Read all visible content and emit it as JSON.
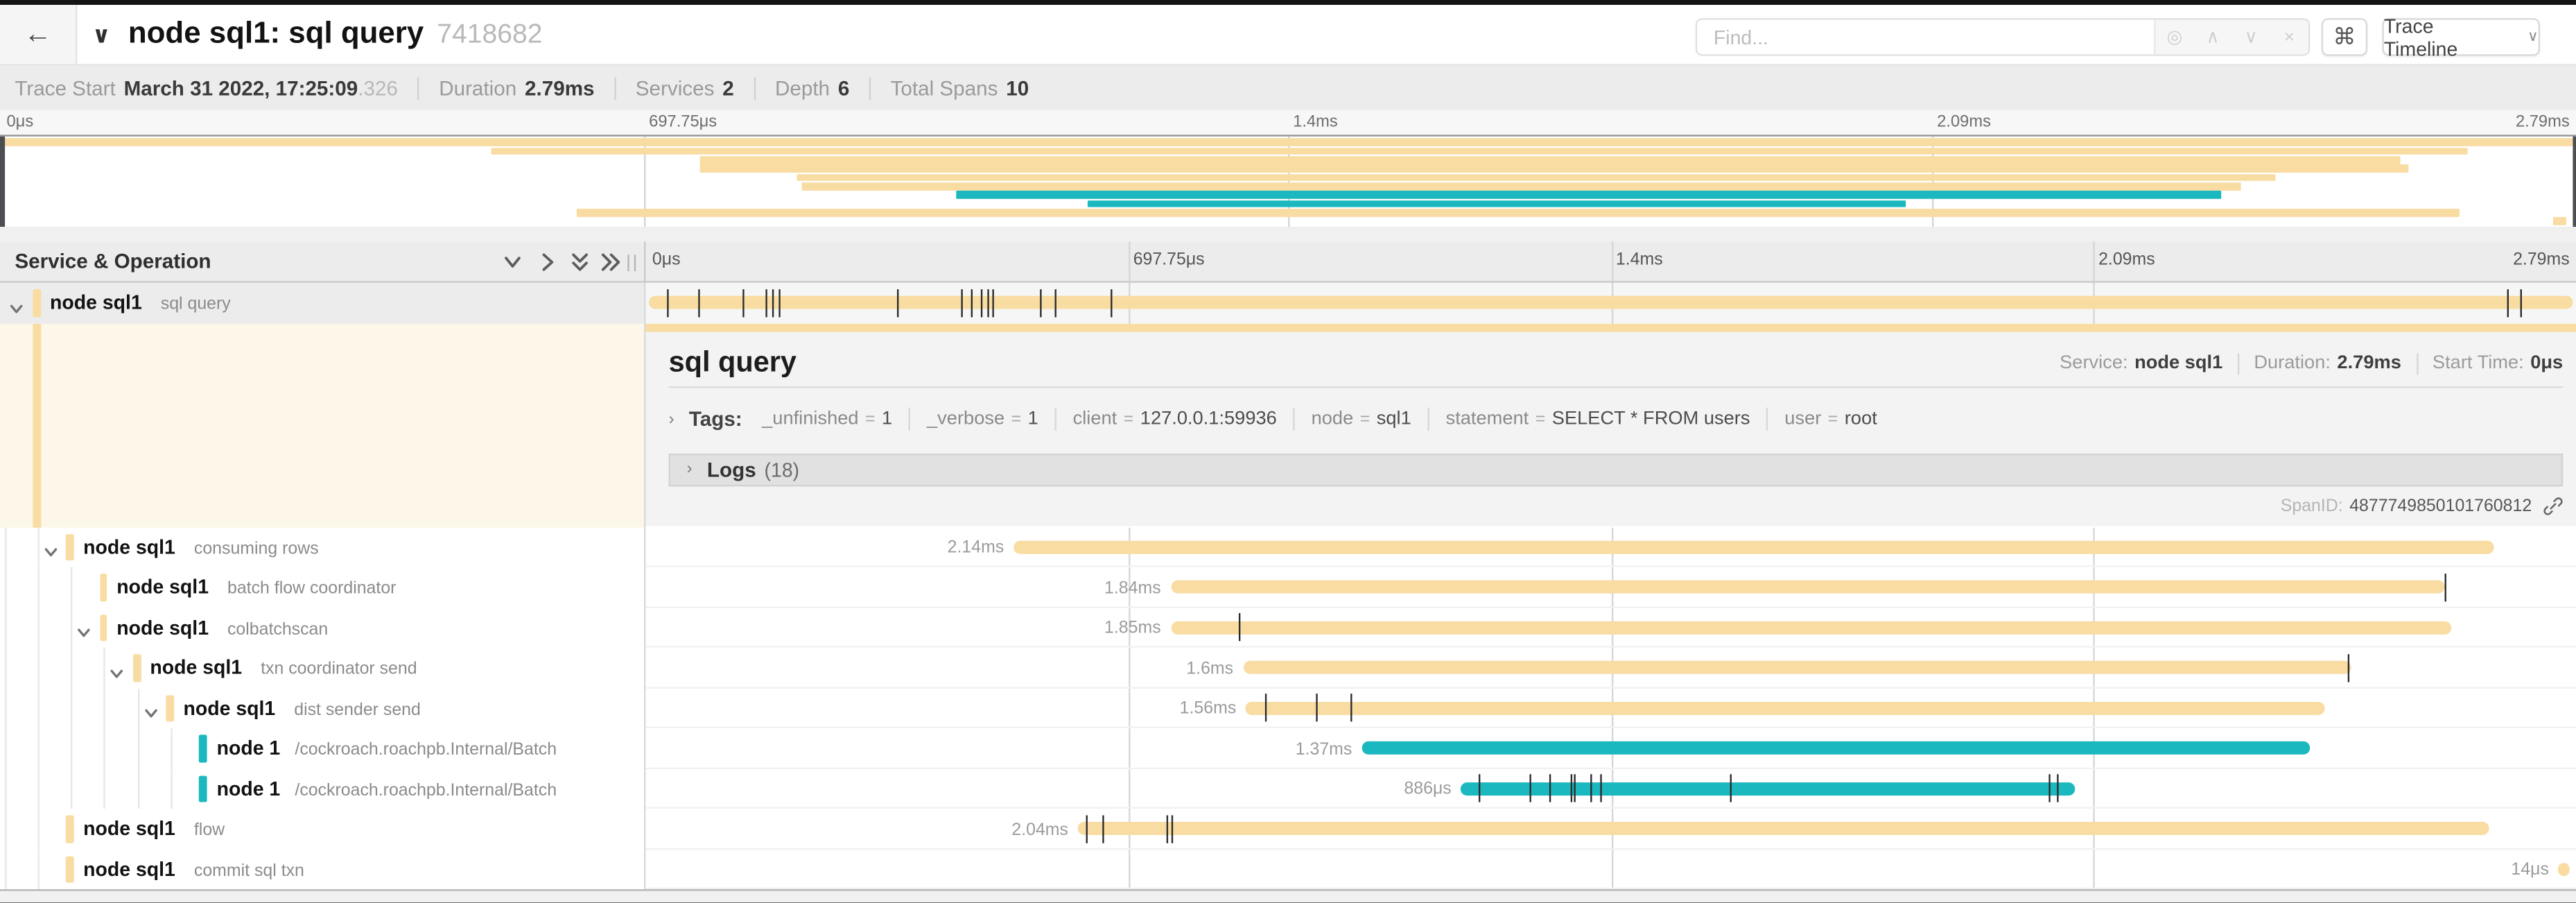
{
  "header": {
    "back_icon": "←",
    "collapse_chevron": "∨",
    "title": "node sql1: sql query",
    "trace_id": "7418682",
    "find_placeholder": "Find...",
    "find_icons": [
      "locate",
      "prev",
      "next",
      "clear"
    ],
    "find_icon_glyphs": {
      "locate": "◎",
      "prev": "∧",
      "next": "∨",
      "clear": "×"
    },
    "shortcut_key": "⌘",
    "view_button": "Trace Timeline",
    "view_button_caret": "∨"
  },
  "trace_info": {
    "items": [
      {
        "label": "Trace Start",
        "value": "March 31 2022, 17:25:09",
        "suffix": ".326"
      },
      {
        "label": "Duration",
        "value": "2.79ms",
        "suffix": ""
      },
      {
        "label": "Services",
        "value": "2",
        "suffix": ""
      },
      {
        "label": "Depth",
        "value": "6",
        "suffix": ""
      },
      {
        "label": "Total Spans",
        "value": "10",
        "suffix": ""
      }
    ]
  },
  "timeline": {
    "left_header": "Service & Operation",
    "ticks": [
      "0μs",
      "697.75μs",
      "1.4ms",
      "2.09ms",
      "2.79ms"
    ],
    "tick_positions_pct": [
      0,
      25,
      50,
      75,
      100
    ]
  },
  "detail": {
    "title": "sql query",
    "service_label": "Service:",
    "service": "node sql1",
    "duration_label": "Duration:",
    "duration": "2.79ms",
    "start_label": "Start Time:",
    "start": "0μs",
    "tags_label": "Tags:",
    "tags": [
      {
        "key": "_unfinished",
        "value": "1"
      },
      {
        "key": "_verbose",
        "value": "1"
      },
      {
        "key": "client",
        "value": "127.0.0.1:59936"
      },
      {
        "key": "node",
        "value": "sql1"
      },
      {
        "key": "statement",
        "value": "SELECT * FROM users"
      },
      {
        "key": "user",
        "value": "root"
      }
    ],
    "logs_label": "Logs",
    "logs_count": "(18)",
    "spanid_label": "SpanID:",
    "spanid": "4877749850101760812"
  },
  "colors": {
    "tan": "#F8DCA2",
    "teal": "#1BB9BF",
    "tick": "#2b2b2b",
    "accent_cream": "#fdf7e9"
  },
  "spans": [
    {
      "service": "node sql1",
      "operation": "sql query",
      "depth": 0,
      "expandable": true,
      "selected": true,
      "color": "tan",
      "start_pct": 0.15,
      "width_pct": 99.7,
      "duration_label": "",
      "ticks_pct": [
        1.1,
        2.7,
        5.0,
        6.2,
        6.55,
        6.9,
        13.0,
        16.3,
        16.85,
        17.35,
        17.7,
        17.95,
        20.4,
        21.2,
        24.1,
        96.4,
        97.1
      ]
    },
    {
      "service": "node sql1",
      "operation": "consuming rows",
      "depth": 1,
      "expandable": true,
      "selected": false,
      "color": "tan",
      "start_pct": 19.07,
      "width_pct": 76.7,
      "duration_label": "2.14ms",
      "ticks_pct": []
    },
    {
      "service": "node sql1",
      "operation": "batch flow coordinator",
      "depth": 2,
      "expandable": false,
      "selected": false,
      "color": "tan",
      "start_pct": 27.2,
      "width_pct": 65.95,
      "duration_label": "1.84ms",
      "ticks_pct": [
        93.2
      ]
    },
    {
      "service": "node sql1",
      "operation": "colbatchscan",
      "depth": 2,
      "expandable": true,
      "selected": false,
      "color": "tan",
      "start_pct": 27.2,
      "width_pct": 66.3,
      "duration_label": "1.85ms",
      "ticks_pct": [
        30.75
      ]
    },
    {
      "service": "node sql1",
      "operation": "txn coordinator send",
      "depth": 3,
      "expandable": true,
      "selected": false,
      "color": "tan",
      "start_pct": 30.95,
      "width_pct": 57.35,
      "duration_label": "1.6ms",
      "ticks_pct": [
        88.2
      ]
    },
    {
      "service": "node sql1",
      "operation": "dist sender send",
      "depth": 4,
      "expandable": true,
      "selected": false,
      "color": "tan",
      "start_pct": 31.1,
      "width_pct": 55.9,
      "duration_label": "1.56ms",
      "ticks_pct": [
        32.1,
        34.75,
        36.5
      ]
    },
    {
      "service": "node 1",
      "operation": "/cockroach.roachpb.Internal/Batch",
      "depth": 5,
      "expandable": false,
      "selected": false,
      "color": "teal",
      "start_pct": 37.1,
      "width_pct": 49.1,
      "duration_label": "1.37ms",
      "ticks_pct": []
    },
    {
      "service": "node 1",
      "operation": "/cockroach.roachpb.Internal/Batch",
      "depth": 5,
      "expandable": false,
      "selected": false,
      "color": "teal",
      "start_pct": 42.25,
      "width_pct": 31.76,
      "duration_label": "886μs",
      "ticks_pct": [
        43.15,
        45.8,
        46.8,
        47.9,
        48.05,
        48.9,
        49.45,
        56.15,
        72.65,
        73.1
      ]
    },
    {
      "service": "node sql1",
      "operation": "flow",
      "depth": 1,
      "expandable": false,
      "selected": false,
      "color": "tan",
      "start_pct": 22.4,
      "width_pct": 73.1,
      "duration_label": "2.04ms",
      "ticks_pct": [
        22.85,
        23.65,
        27.0,
        27.2
      ]
    },
    {
      "service": "node sql1",
      "operation": "commit sql txn",
      "depth": 1,
      "expandable": false,
      "selected": false,
      "color": "tan",
      "start_pct": 99.1,
      "width_pct": 0.55,
      "duration_label": "14μs",
      "ticks_pct": []
    }
  ]
}
